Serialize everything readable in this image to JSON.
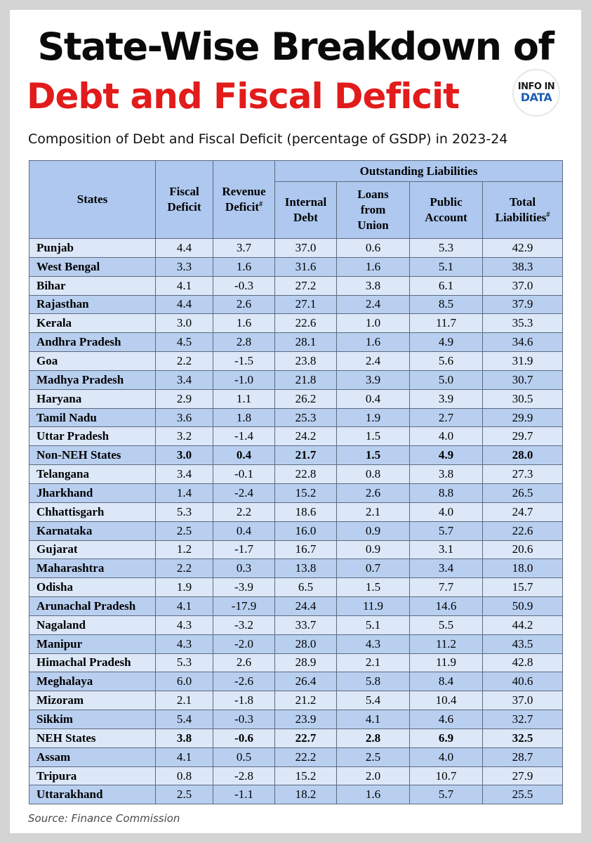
{
  "title": {
    "line1": "State-Wise Breakdown of",
    "line2": "Debt and Fiscal Deficit"
  },
  "logo": {
    "line1": "INFO IN",
    "line2": "DATA"
  },
  "subtitle": "Composition of Debt and Fiscal Deficit (percentage of GSDP) in 2023-24",
  "table": {
    "group_header": "Outstanding Liabilities",
    "columns": {
      "states": "States",
      "fiscal_deficit": [
        "Fiscal",
        "Deficit"
      ],
      "revenue_deficit": [
        "Revenue",
        "Deficit"
      ],
      "internal_debt": [
        "Internal",
        "Debt"
      ],
      "loans_from_union": [
        "Loans",
        "from",
        "Union"
      ],
      "public_account": [
        "Public",
        "Account"
      ],
      "total_liabilities": [
        "Total",
        "Liabilities"
      ],
      "hash_mark": "#"
    },
    "rows": [
      {
        "state": "Punjab",
        "values": [
          "4.4",
          "3.7",
          "37.0",
          "0.6",
          "5.3",
          "42.9"
        ],
        "bold": false
      },
      {
        "state": "West Bengal",
        "values": [
          "3.3",
          "1.6",
          "31.6",
          "1.6",
          "5.1",
          "38.3"
        ],
        "bold": false
      },
      {
        "state": "Bihar",
        "values": [
          "4.1",
          "-0.3",
          "27.2",
          "3.8",
          "6.1",
          "37.0"
        ],
        "bold": false
      },
      {
        "state": "Rajasthan",
        "values": [
          "4.4",
          "2.6",
          "27.1",
          "2.4",
          "8.5",
          "37.9"
        ],
        "bold": false
      },
      {
        "state": "Kerala",
        "values": [
          "3.0",
          "1.6",
          "22.6",
          "1.0",
          "11.7",
          "35.3"
        ],
        "bold": false
      },
      {
        "state": "Andhra Pradesh",
        "values": [
          "4.5",
          "2.8",
          "28.1",
          "1.6",
          "4.9",
          "34.6"
        ],
        "bold": false
      },
      {
        "state": "Goa",
        "values": [
          "2.2",
          "-1.5",
          "23.8",
          "2.4",
          "5.6",
          "31.9"
        ],
        "bold": false
      },
      {
        "state": "Madhya Pradesh",
        "values": [
          "3.4",
          "-1.0",
          "21.8",
          "3.9",
          "5.0",
          "30.7"
        ],
        "bold": false
      },
      {
        "state": "Haryana",
        "values": [
          "2.9",
          "1.1",
          "26.2",
          "0.4",
          "3.9",
          "30.5"
        ],
        "bold": false
      },
      {
        "state": "Tamil Nadu",
        "values": [
          "3.6",
          "1.8",
          "25.3",
          "1.9",
          "2.7",
          "29.9"
        ],
        "bold": false
      },
      {
        "state": "Uttar Pradesh",
        "values": [
          "3.2",
          "-1.4",
          "24.2",
          "1.5",
          "4.0",
          "29.7"
        ],
        "bold": false
      },
      {
        "state": "Non-NEH States",
        "values": [
          "3.0",
          "0.4",
          "21.7",
          "1.5",
          "4.9",
          "28.0"
        ],
        "bold": true
      },
      {
        "state": "Telangana",
        "values": [
          "3.4",
          "-0.1",
          "22.8",
          "0.8",
          "3.8",
          "27.3"
        ],
        "bold": false
      },
      {
        "state": "Jharkhand",
        "values": [
          "1.4",
          "-2.4",
          "15.2",
          "2.6",
          "8.8",
          "26.5"
        ],
        "bold": false
      },
      {
        "state": "Chhattisgarh",
        "values": [
          "5.3",
          "2.2",
          "18.6",
          "2.1",
          "4.0",
          "24.7"
        ],
        "bold": false
      },
      {
        "state": "Karnataka",
        "values": [
          "2.5",
          "0.4",
          "16.0",
          "0.9",
          "5.7",
          "22.6"
        ],
        "bold": false
      },
      {
        "state": "Gujarat",
        "values": [
          "1.2",
          "-1.7",
          "16.7",
          "0.9",
          "3.1",
          "20.6"
        ],
        "bold": false
      },
      {
        "state": "Maharashtra",
        "values": [
          "2.2",
          "0.3",
          "13.8",
          "0.7",
          "3.4",
          "18.0"
        ],
        "bold": false
      },
      {
        "state": "Odisha",
        "values": [
          "1.9",
          "-3.9",
          "6.5",
          "1.5",
          "7.7",
          "15.7"
        ],
        "bold": false
      },
      {
        "state": "Arunachal Pradesh",
        "values": [
          "4.1",
          "-17.9",
          "24.4",
          "11.9",
          "14.6",
          "50.9"
        ],
        "bold": false
      },
      {
        "state": "Nagaland",
        "values": [
          "4.3",
          "-3.2",
          "33.7",
          "5.1",
          "5.5",
          "44.2"
        ],
        "bold": false
      },
      {
        "state": "Manipur",
        "values": [
          "4.3",
          "-2.0",
          "28.0",
          "4.3",
          "11.2",
          "43.5"
        ],
        "bold": false
      },
      {
        "state": "Himachal Pradesh",
        "values": [
          "5.3",
          "2.6",
          "28.9",
          "2.1",
          "11.9",
          "42.8"
        ],
        "bold": false
      },
      {
        "state": "Meghalaya",
        "values": [
          "6.0",
          "-2.6",
          "26.4",
          "5.8",
          "8.4",
          "40.6"
        ],
        "bold": false
      },
      {
        "state": "Mizoram",
        "values": [
          "2.1",
          "-1.8",
          "21.2",
          "5.4",
          "10.4",
          "37.0"
        ],
        "bold": false
      },
      {
        "state": "Sikkim",
        "values": [
          "5.4",
          "-0.3",
          "23.9",
          "4.1",
          "4.6",
          "32.7"
        ],
        "bold": false
      },
      {
        "state": "NEH States",
        "values": [
          "3.8",
          "-0.6",
          "22.7",
          "2.8",
          "6.9",
          "32.5"
        ],
        "bold": true
      },
      {
        "state": "Assam",
        "values": [
          "4.1",
          "0.5",
          "22.2",
          "2.5",
          "4.0",
          "28.7"
        ],
        "bold": false
      },
      {
        "state": "Tripura",
        "values": [
          "0.8",
          "-2.8",
          "15.2",
          "2.0",
          "10.7",
          "27.9"
        ],
        "bold": false
      },
      {
        "state": "Uttarakhand",
        "values": [
          "2.5",
          "-1.1",
          "18.2",
          "1.6",
          "5.7",
          "25.5"
        ],
        "bold": false
      }
    ]
  },
  "source": "Source: Finance Commission",
  "colors": {
    "title_black": "#0a0a0a",
    "title_red": "#e21b1b",
    "header_fill": "#aec8ef",
    "row_light": "#dce8f8",
    "row_dark": "#b9cff0",
    "logo_blue": "#1f5fb5"
  }
}
